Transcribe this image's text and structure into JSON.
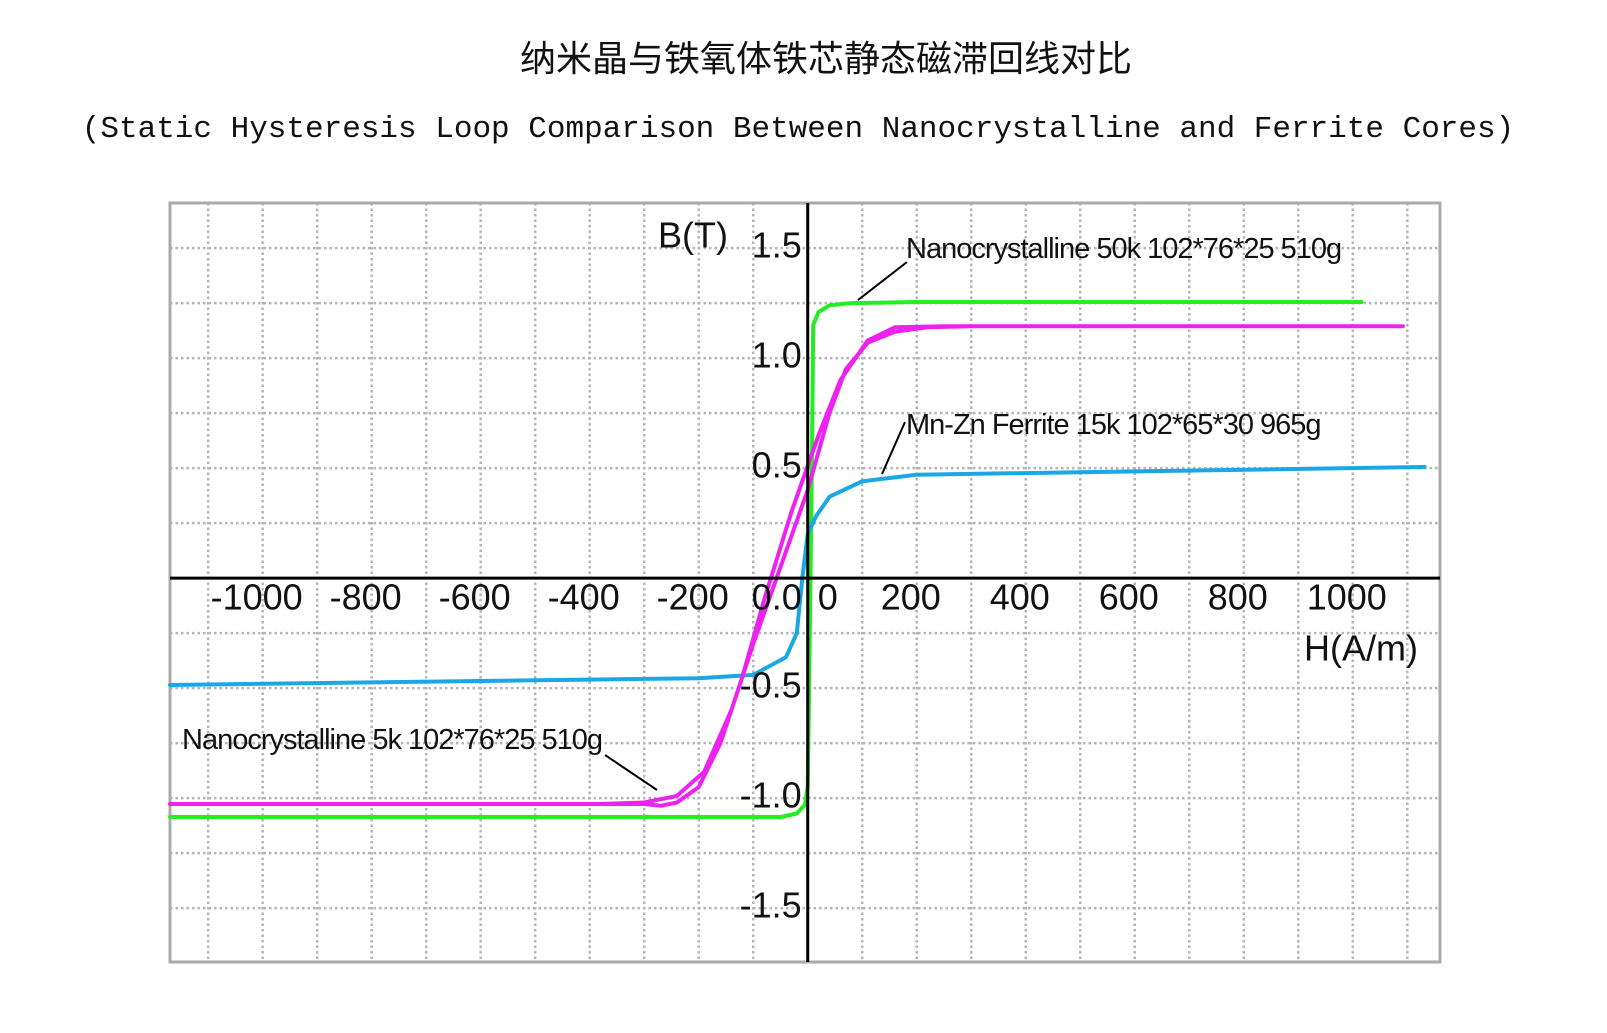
{
  "chart_data": {
    "type": "line",
    "title": "纳米晶与铁氧体铁芯静态磁滞回线对比",
    "subtitle": "(Static Hysteresis Loop Comparison Between Nanocrystalline and Ferrite Cores)",
    "x_label": "H(A/m)",
    "y_label": "B(T)",
    "xlim": [
      -1170,
      1160
    ],
    "ylim": [
      -1.745,
      1.705
    ],
    "xticks": [
      -1000,
      -800,
      -600,
      -400,
      -200,
      0,
      200,
      400,
      600,
      800,
      1000
    ],
    "yticks": [
      1.5,
      {
        "value": 1,
        "label": "1.0"
      },
      0.5,
      {
        "value": 0,
        "label": "0.0"
      },
      -0.5,
      {
        "value": -1,
        "label": "-1.0"
      },
      -1.5
    ],
    "grid": true,
    "series": [
      {
        "name": "Nanocrystalline 50k 102*76*25 510g",
        "color": "#22ee22",
        "x": [
          1016,
          200,
          80,
          40,
          20,
          10,
          8,
          5,
          2,
          0,
          -5,
          -20,
          -50,
          -1170
        ],
        "values": [
          1.255,
          1.255,
          1.25,
          1.24,
          1.21,
          1.15,
          0.6,
          0,
          -0.6,
          -0.95,
          -1.03,
          -1.07,
          -1.086,
          -1.086
        ]
      },
      {
        "name": "Mn-Zn Ferrite 15k 102*65*30 965g",
        "color": "#1aa7e6",
        "x": [
          -1170,
          -200,
          -100,
          -40,
          -20,
          -10,
          0,
          15,
          40,
          100,
          200,
          1132
        ],
        "values": [
          -0.486,
          -0.455,
          -0.44,
          -0.36,
          -0.25,
          0,
          0.2,
          0.28,
          0.37,
          0.44,
          0.47,
          0.505
        ]
      },
      {
        "name": "Nanocrystalline 5k 102*76*25 510g",
        "color": "#ee22ee",
        "x": [
          1092,
          300,
          220,
          160,
          110,
          70,
          40,
          0,
          -50,
          -100,
          -140,
          -190,
          -240,
          -300,
          -380,
          -1170,
          -380,
          -300,
          -270,
          -240,
          -200,
          -160,
          -120,
          -80,
          -30,
          20,
          60,
          110,
          160,
          250,
          1092
        ],
        "values": [
          1.145,
          1.145,
          1.14,
          1.12,
          1.07,
          0.95,
          0.75,
          0.4,
          0.05,
          -0.3,
          -0.6,
          -0.88,
          -0.99,
          -1.02,
          -1.027,
          -1.027,
          -1.027,
          -1.027,
          -1.035,
          -1.02,
          -0.95,
          -0.75,
          -0.45,
          -0.1,
          0.3,
          0.65,
          0.9,
          1.08,
          1.14,
          1.145,
          1.145
        ]
      }
    ]
  }
}
